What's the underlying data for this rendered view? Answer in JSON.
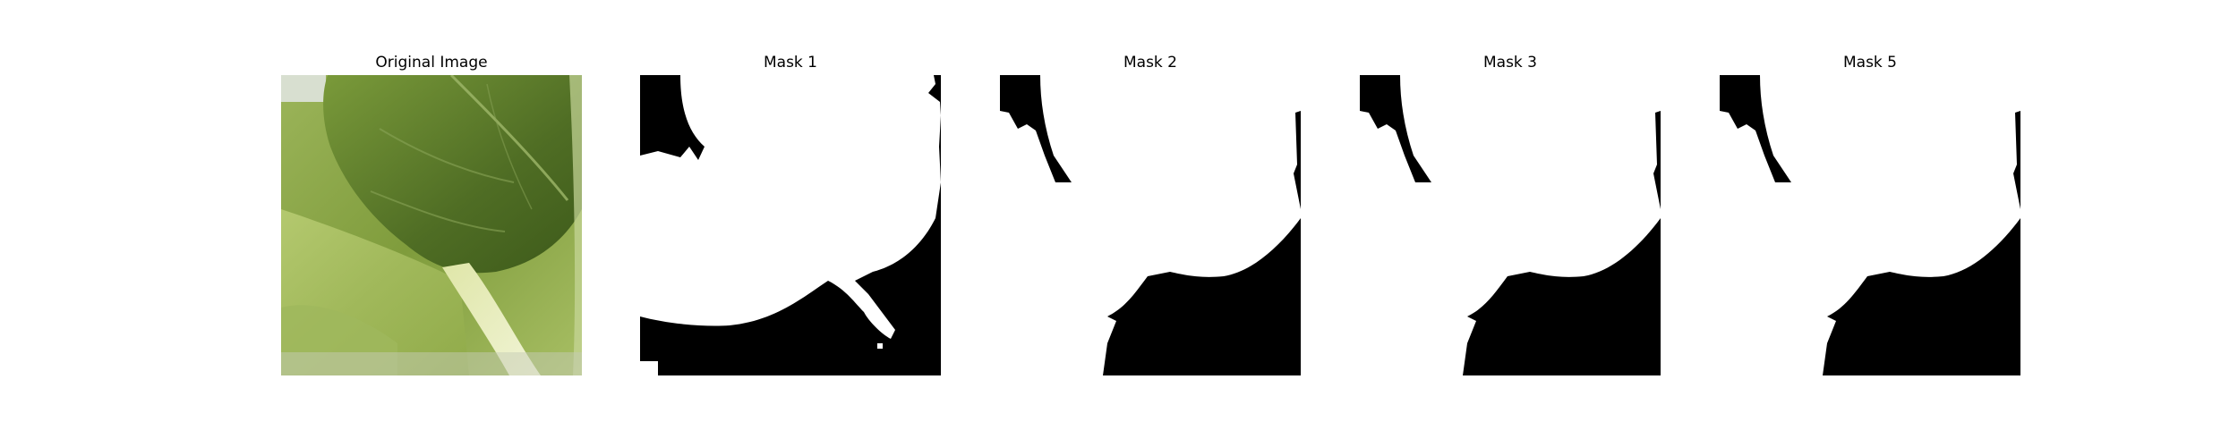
{
  "figure": {
    "panels": [
      {
        "title": "Original Image",
        "kind": "photo",
        "subject": "leaf-photo"
      },
      {
        "title": "Mask 1",
        "kind": "mask"
      },
      {
        "title": "Mask 2",
        "kind": "mask"
      },
      {
        "title": "Mask 3",
        "kind": "mask"
      },
      {
        "title": "Mask 5",
        "kind": "mask"
      }
    ],
    "colors": {
      "background": "#ffffff",
      "mask_foreground": "#ffffff",
      "mask_background": "#000000",
      "leaf_dark": "#3f5a1f",
      "leaf_mid": "#6f8f35",
      "leaf_light": "#c9d88a",
      "stem": "#e8edc4"
    }
  }
}
